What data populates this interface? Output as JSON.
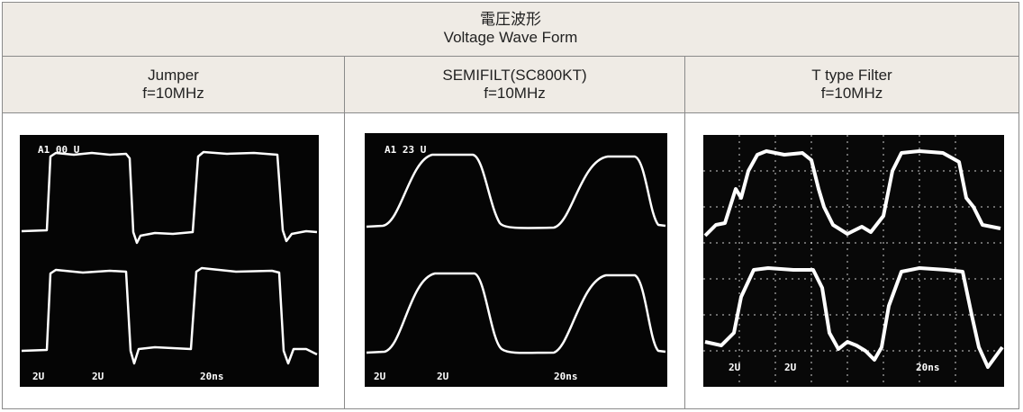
{
  "header": {
    "title": "電圧波形",
    "subtitle": "Voltage Wave Form"
  },
  "columns": [
    {
      "name": "Jumper",
      "frequency": "f=10MHz",
      "scope_labels": {
        "top": "A1 00 U",
        "bottom": [
          "2U",
          "2U",
          "20ns"
        ]
      }
    },
    {
      "name": "SEMIFILT(SC800KT)",
      "frequency": "f=10MHz",
      "scope_labels": {
        "top": "A1 23 U",
        "bottom": [
          "2U",
          "2U",
          "20ns"
        ]
      }
    },
    {
      "name": "T type Filter",
      "frequency": "f=10MHz",
      "scope_labels": {
        "bottom": [
          "2U",
          "2U",
          "20ns"
        ]
      }
    }
  ]
}
